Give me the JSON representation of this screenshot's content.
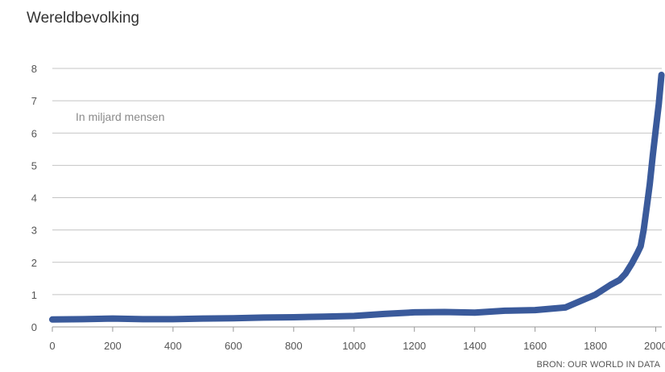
{
  "chart_data": {
    "type": "line",
    "title": "Wereldbevolking",
    "unit_label": "In miljard mensen",
    "source": "BRON: OUR WORLD IN DATA",
    "xlim": [
      0,
      2020
    ],
    "ylim": [
      0,
      8
    ],
    "x_ticks": [
      0,
      200,
      400,
      600,
      800,
      1000,
      1200,
      1400,
      1600,
      1800,
      2000
    ],
    "x_tick_labels": [
      "0",
      "200",
      "400",
      "600",
      "800",
      "1000",
      "1200",
      "1400",
      "1600",
      "1800",
      "2000"
    ],
    "y_ticks": [
      0,
      1,
      2,
      3,
      4,
      5,
      6,
      7,
      8
    ],
    "y_tick_labels": [
      "0",
      "1",
      "2",
      "3",
      "4",
      "5",
      "6",
      "7",
      "8"
    ],
    "grid": "horizontal",
    "line_color": "#3a5a9b",
    "series": [
      {
        "x": [
          0,
          100,
          200,
          300,
          400,
          500,
          600,
          700,
          800,
          900,
          1000,
          1100,
          1200,
          1300,
          1400,
          1500,
          1600,
          1700,
          1750,
          1800,
          1850,
          1880,
          1900,
          1920,
          1940,
          1950,
          1960,
          1970,
          1980,
          1990,
          2000,
          2010,
          2019
        ],
        "y": [
          0.23,
          0.24,
          0.26,
          0.24,
          0.24,
          0.26,
          0.27,
          0.29,
          0.3,
          0.32,
          0.34,
          0.4,
          0.45,
          0.46,
          0.44,
          0.5,
          0.52,
          0.6,
          0.8,
          1.0,
          1.3,
          1.45,
          1.65,
          1.95,
          2.3,
          2.5,
          3.0,
          3.7,
          4.4,
          5.3,
          6.1,
          6.9,
          7.8
        ]
      }
    ]
  }
}
